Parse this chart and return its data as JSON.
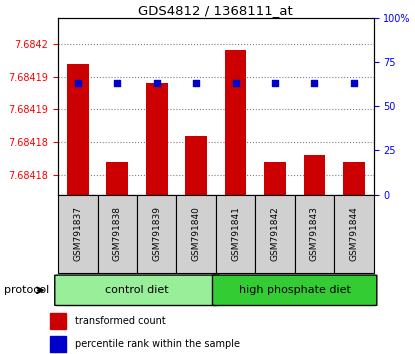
{
  "title": "GDS4812 / 1368111_at",
  "samples": [
    "GSM791837",
    "GSM791838",
    "GSM791839",
    "GSM791840",
    "GSM791841",
    "GSM791842",
    "GSM791843",
    "GSM791844"
  ],
  "transformed_counts": [
    7.684195,
    7.68418,
    7.684192,
    7.684184,
    7.684197,
    7.68418,
    7.684181,
    7.68418
  ],
  "percentile_ranks": [
    63,
    63,
    63,
    63,
    63,
    63,
    63,
    63
  ],
  "ymin": 7.684175,
  "ymax": 7.684202,
  "ytick_vals": [
    7.684178,
    7.684183,
    7.684188,
    7.684193,
    7.684198
  ],
  "ytick_labels": [
    "7.68418",
    "7.68418",
    "7.68419",
    "7.68419",
    "7.6842"
  ],
  "right_ytick_vals": [
    0,
    25,
    50,
    75,
    100
  ],
  "right_ytick_labels": [
    "0",
    "25",
    "50",
    "75",
    "100%"
  ],
  "bar_color": "#cc0000",
  "dot_color": "#0000cc",
  "dot_percentile": 63,
  "groups": [
    {
      "label": "control diet",
      "indices": [
        0,
        1,
        2,
        3
      ],
      "color": "#99ee99"
    },
    {
      "label": "high phosphate diet",
      "indices": [
        4,
        5,
        6,
        7
      ],
      "color": "#33cc33"
    }
  ],
  "protocol_label": "protocol",
  "legend1": "transformed count",
  "legend2": "percentile rank within the sample",
  "xtick_bg": "#d0d0d0"
}
